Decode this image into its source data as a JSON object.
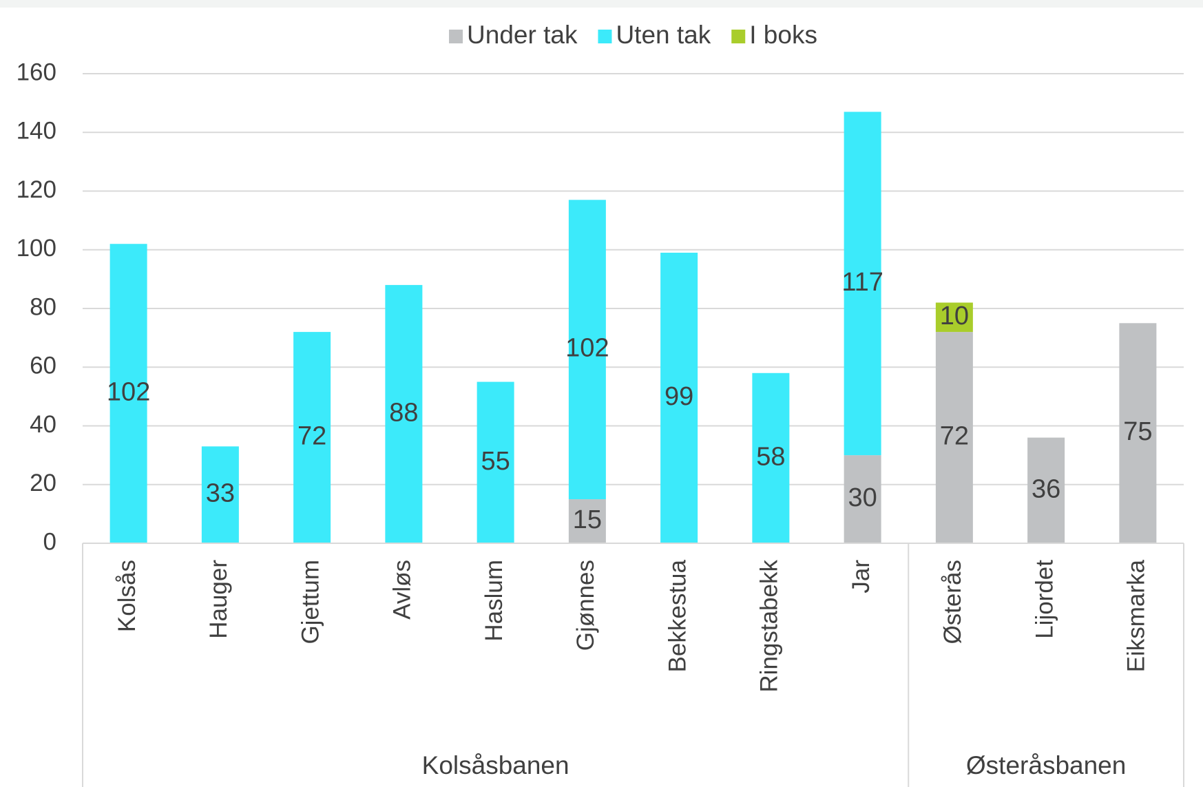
{
  "chart_data": {
    "type": "bar",
    "stacked": true,
    "categories": [
      "Kolsås",
      "Hauger",
      "Gjettum",
      "Avløs",
      "Haslum",
      "Gjønnes",
      "Bekkestua",
      "Ringstabekk",
      "Jar",
      "Østerås",
      "Lijordet",
      "Eiksmarka"
    ],
    "category_groups": [
      "Kolsåsbanen",
      "Kolsåsbanen",
      "Kolsåsbanen",
      "Kolsåsbanen",
      "Kolsåsbanen",
      "Kolsåsbanen",
      "Kolsåsbanen",
      "Kolsåsbanen",
      "Kolsåsbanen",
      "Østeråsbanen",
      "Østeråsbanen",
      "Østeråsbanen"
    ],
    "series": [
      {
        "name": "Under tak",
        "color": "#bfc1c3",
        "values": [
          null,
          null,
          null,
          null,
          null,
          15,
          null,
          null,
          30,
          72,
          36,
          75
        ]
      },
      {
        "name": "Uten tak",
        "color": "#3ceafa",
        "values": [
          102,
          33,
          72,
          88,
          55,
          102,
          99,
          58,
          117,
          null,
          null,
          null
        ]
      },
      {
        "name": "I boks",
        "color": "#a9cd2b",
        "values": [
          null,
          null,
          null,
          null,
          null,
          null,
          null,
          null,
          null,
          10,
          null,
          null
        ]
      }
    ],
    "ylim": [
      0,
      160
    ],
    "yticks": [
      0,
      20,
      40,
      60,
      80,
      100,
      120,
      140,
      160
    ],
    "grid": true,
    "legend": "top"
  }
}
